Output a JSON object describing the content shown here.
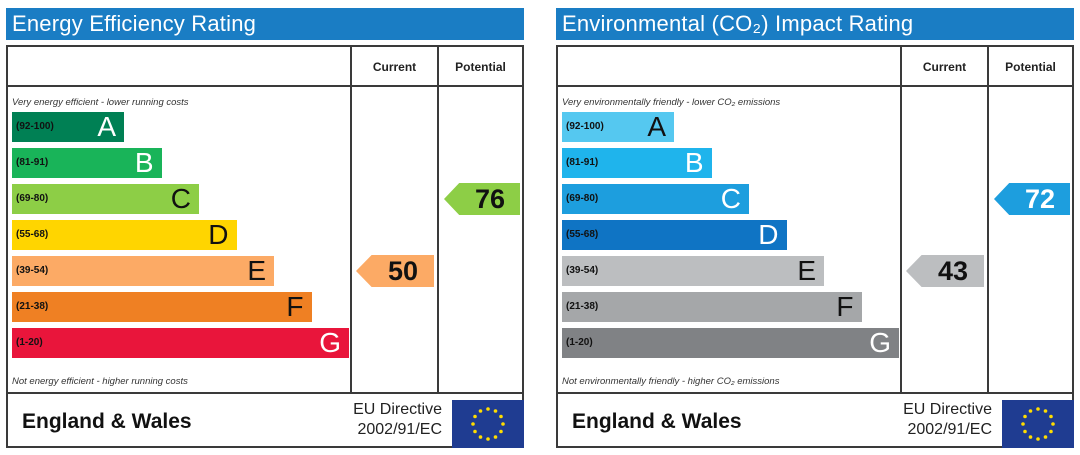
{
  "chart_data": [
    {
      "type": "table",
      "title": "Energy Efficiency Rating",
      "columns": [
        "Current",
        "Potential"
      ],
      "top_note": "Very energy efficient - lower running costs",
      "bottom_note": "Not energy efficient - higher running costs",
      "bands": [
        {
          "range": "(92-100)",
          "letter": "A",
          "min": 92,
          "max": 100,
          "color": "#008054"
        },
        {
          "range": "(81-91)",
          "letter": "B",
          "min": 81,
          "max": 91,
          "color": "#19b459"
        },
        {
          "range": "(69-80)",
          "letter": "C",
          "min": 69,
          "max": 80,
          "color": "#8dce46"
        },
        {
          "range": "(55-68)",
          "letter": "D",
          "min": 55,
          "max": 68,
          "color": "#ffd500"
        },
        {
          "range": "(39-54)",
          "letter": "E",
          "min": 39,
          "max": 54,
          "color": "#fcaa65"
        },
        {
          "range": "(21-38)",
          "letter": "F",
          "min": 21,
          "max": 38,
          "color": "#ef8023"
        },
        {
          "range": "(1-20)",
          "letter": "G",
          "min": 1,
          "max": 20,
          "color": "#e9153b"
        }
      ],
      "current": 50,
      "potential": 76,
      "current_color": "#fcaa65",
      "potential_color": "#8dce46",
      "region": "England & Wales",
      "directive_line1": "EU Directive",
      "directive_line2": "2002/91/EC"
    },
    {
      "type": "table",
      "title": "Environmental (CO₂) Impact Rating",
      "columns": [
        "Current",
        "Potential"
      ],
      "top_note": "Very environmentally friendly - lower CO₂ emissions",
      "bottom_note": "Not environmentally friendly - higher CO₂ emissions",
      "bands": [
        {
          "range": "(92-100)",
          "letter": "A",
          "min": 92,
          "max": 100,
          "color": "#55c8f0"
        },
        {
          "range": "(81-91)",
          "letter": "B",
          "min": 81,
          "max": 91,
          "color": "#1fb4ec"
        },
        {
          "range": "(69-80)",
          "letter": "C",
          "min": 69,
          "max": 80,
          "color": "#1d9ede"
        },
        {
          "range": "(55-68)",
          "letter": "D",
          "min": 55,
          "max": 68,
          "color": "#0f74c4"
        },
        {
          "range": "(39-54)",
          "letter": "E",
          "min": 39,
          "max": 54,
          "color": "#bcbec0"
        },
        {
          "range": "(21-38)",
          "letter": "F",
          "min": 21,
          "max": 38,
          "color": "#a5a7a9"
        },
        {
          "range": "(1-20)",
          "letter": "G",
          "min": 1,
          "max": 20,
          "color": "#808285"
        }
      ],
      "current": 43,
      "potential": 72,
      "current_color": "#bcbec0",
      "potential_color": "#1d9ede",
      "region": "England & Wales",
      "directive_line1": "EU Directive",
      "directive_line2": "2002/91/EC"
    }
  ],
  "colors": {
    "title_bar": "#1a7dc4",
    "eu_flag_blue": "#1f3c91",
    "eu_flag_stars": "#ffdd00"
  },
  "icons": {
    "eu_flag": "eu-flag-icon"
  }
}
